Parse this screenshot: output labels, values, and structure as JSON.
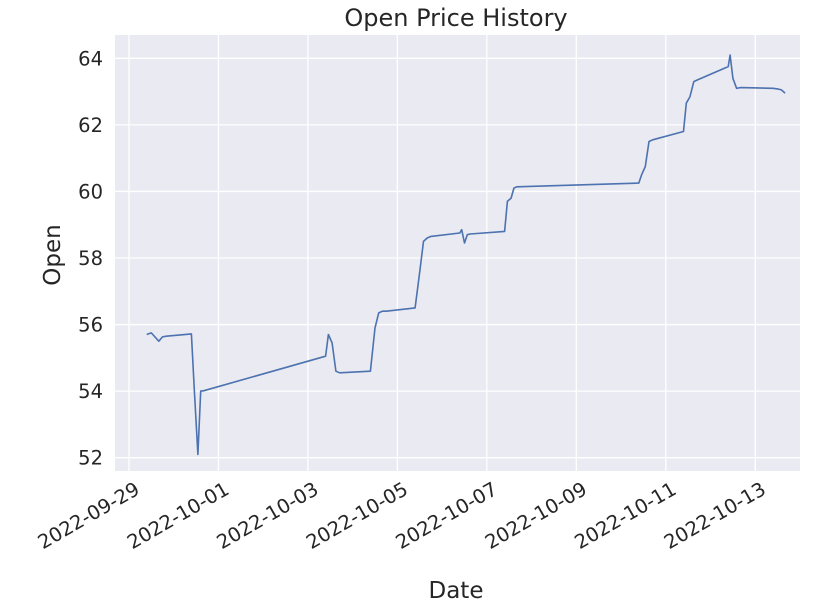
{
  "chart_data": {
    "type": "line",
    "title": "Open Price History",
    "xlabel": "Date",
    "ylabel": "Open",
    "xlim": [
      "2022-09-28T16:30",
      "2022-10-14T00:00"
    ],
    "ylim": [
      51.6,
      64.7
    ],
    "grid": true,
    "x_ticks": [
      "2022-09-29",
      "2022-10-01",
      "2022-10-03",
      "2022-10-05",
      "2022-10-07",
      "2022-10-09",
      "2022-10-11",
      "2022-10-13"
    ],
    "y_ticks": [
      52,
      54,
      56,
      58,
      60,
      62,
      64
    ],
    "series": [
      {
        "color": "#4c72b0",
        "x": [
          "2022-09-29T09:30",
          "2022-09-29T12:00",
          "2022-09-29T16:00",
          "2022-09-29T18:00",
          "2022-09-29T20:00",
          "2022-09-30T09:30",
          "2022-09-30T11:00",
          "2022-09-30T13:00",
          "2022-09-30T14:30",
          "2022-09-30T16:00",
          "2022-10-03T09:30",
          "2022-10-03T11:00",
          "2022-10-03T13:00",
          "2022-10-03T15:00",
          "2022-10-03T17:00",
          "2022-10-04T09:30",
          "2022-10-04T12:00",
          "2022-10-04T14:00",
          "2022-10-04T16:00",
          "2022-10-04T18:00",
          "2022-10-05T09:30",
          "2022-10-05T12:00",
          "2022-10-05T14:00",
          "2022-10-05T16:00",
          "2022-10-05T18:00",
          "2022-10-06T09:30",
          "2022-10-06T10:30",
          "2022-10-06T12:00",
          "2022-10-06T13:30",
          "2022-10-06T15:00",
          "2022-10-07T09:30",
          "2022-10-07T11:00",
          "2022-10-07T13:00",
          "2022-10-07T14:30",
          "2022-10-07T16:00",
          "2022-10-10T09:30",
          "2022-10-10T11:00",
          "2022-10-10T13:00",
          "2022-10-10T15:00",
          "2022-10-10T17:00",
          "2022-10-11T09:30",
          "2022-10-11T11:00",
          "2022-10-11T13:00",
          "2022-10-11T15:00",
          "2022-10-11T17:00",
          "2022-10-12T09:30",
          "2022-10-12T10:30",
          "2022-10-12T12:00",
          "2022-10-12T14:00",
          "2022-10-12T16:00",
          "2022-10-13T09:30",
          "2022-10-13T12:00",
          "2022-10-13T14:00",
          "2022-10-13T16:00"
        ],
        "y": [
          55.7,
          55.75,
          55.5,
          55.63,
          55.65,
          55.72,
          54.1,
          52.1,
          54.0,
          54.01,
          55.05,
          55.7,
          55.45,
          54.6,
          54.55,
          54.6,
          55.9,
          56.35,
          56.4,
          56.4,
          56.5,
          57.6,
          58.5,
          58.6,
          58.65,
          58.75,
          58.85,
          58.45,
          58.7,
          58.72,
          58.8,
          59.7,
          59.8,
          60.1,
          60.14,
          60.25,
          60.5,
          60.75,
          61.5,
          61.55,
          61.8,
          62.65,
          62.85,
          63.3,
          63.35,
          63.75,
          64.1,
          63.4,
          63.1,
          63.12,
          63.1,
          63.08,
          63.05,
          62.95
        ]
      }
    ]
  }
}
